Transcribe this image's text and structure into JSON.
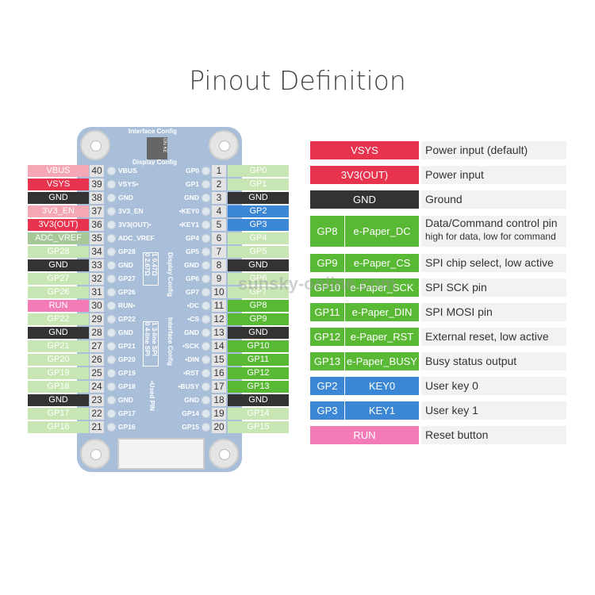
{
  "title": "Pinout Definition",
  "board": {
    "interface_config": "Interface Config",
    "display_config": "Display Config",
    "switch_text": "ON KE",
    "display_cfg_table": [
      [
        "1",
        "0.47Ω"
      ],
      [
        "0",
        "2.67Ω"
      ]
    ],
    "interface_cfg_table": [
      [
        "1",
        "3-line SPI"
      ],
      [
        "0",
        "4-line SPI"
      ]
    ],
    "used_pin": "•Used PIN",
    "board_color": "#a9bfd9"
  },
  "colors": {
    "pink_light": "#f4a7b5",
    "red": "#e8334f",
    "black": "#333333",
    "green_light": "#c8e6b3",
    "adc": "#a6c797",
    "blue": "#3b87d6",
    "green": "#5ab934",
    "run": "#f47cb6"
  },
  "left_pins": [
    {
      "num": "40",
      "label": "VBUS",
      "board": "VBUS",
      "c": "pink_light"
    },
    {
      "num": "39",
      "label": "VSYS",
      "board": "VSYS•",
      "c": "red"
    },
    {
      "num": "38",
      "label": "GND",
      "board": "GND",
      "c": "black"
    },
    {
      "num": "37",
      "label": "3V3_EN",
      "board": "3V3_EN",
      "c": "pink_light"
    },
    {
      "num": "36",
      "label": "3V3(OUT)",
      "board": "3V3(OUT)•",
      "c": "red"
    },
    {
      "num": "35",
      "label": "ADC_VREF",
      "board": "ADC_VREF",
      "c": "adc"
    },
    {
      "num": "34",
      "label": "GP28",
      "board": "GP28",
      "c": "green_light"
    },
    {
      "num": "33",
      "label": "GND",
      "board": "GND",
      "c": "black"
    },
    {
      "num": "32",
      "label": "GP27",
      "board": "GP27",
      "c": "green_light"
    },
    {
      "num": "31",
      "label": "GP26",
      "board": "GP26",
      "c": "green_light"
    },
    {
      "num": "30",
      "label": "RUN",
      "board": "RUN•",
      "c": "run"
    },
    {
      "num": "29",
      "label": "GP22",
      "board": "GP22",
      "c": "green_light"
    },
    {
      "num": "28",
      "label": "GND",
      "board": "GND",
      "c": "black"
    },
    {
      "num": "27",
      "label": "GP21",
      "board": "GP21",
      "c": "green_light"
    },
    {
      "num": "26",
      "label": "GP20",
      "board": "GP20",
      "c": "green_light"
    },
    {
      "num": "25",
      "label": "GP19",
      "board": "GP19",
      "c": "green_light"
    },
    {
      "num": "24",
      "label": "GP18",
      "board": "GP18",
      "c": "green_light"
    },
    {
      "num": "23",
      "label": "GND",
      "board": "GND",
      "c": "black"
    },
    {
      "num": "22",
      "label": "GP17",
      "board": "GP17",
      "c": "green_light"
    },
    {
      "num": "21",
      "label": "GP16",
      "board": "GP16",
      "c": "green_light"
    }
  ],
  "right_pins": [
    {
      "num": "1",
      "label": "GP0",
      "board": "GP0",
      "c": "green_light"
    },
    {
      "num": "2",
      "label": "GP1",
      "board": "GP1",
      "c": "green_light"
    },
    {
      "num": "3",
      "label": "GND",
      "board": "GND",
      "c": "black"
    },
    {
      "num": "4",
      "label": "GP2",
      "board": "•KEY0",
      "c": "blue"
    },
    {
      "num": "5",
      "label": "GP3",
      "board": "•KEY1",
      "c": "blue"
    },
    {
      "num": "6",
      "label": "GP4",
      "board": "GP4",
      "c": "green_light"
    },
    {
      "num": "7",
      "label": "GP5",
      "board": "GP5",
      "c": "green_light"
    },
    {
      "num": "8",
      "label": "GND",
      "board": "GND",
      "c": "black"
    },
    {
      "num": "9",
      "label": "GP6",
      "board": "GP6",
      "c": "green_light"
    },
    {
      "num": "10",
      "label": "GP7",
      "board": "GP7",
      "c": "green_light"
    },
    {
      "num": "11",
      "label": "GP8",
      "board": "•DC",
      "c": "green"
    },
    {
      "num": "12",
      "label": "GP9",
      "board": "•CS",
      "c": "green"
    },
    {
      "num": "13",
      "label": "GND",
      "board": "GND",
      "c": "black"
    },
    {
      "num": "14",
      "label": "GP10",
      "board": "•SCK",
      "c": "green"
    },
    {
      "num": "15",
      "label": "GP11",
      "board": "•DIN",
      "c": "green"
    },
    {
      "num": "16",
      "label": "GP12",
      "board": "•RST",
      "c": "green"
    },
    {
      "num": "17",
      "label": "GP13",
      "board": "•BUSY",
      "c": "green"
    },
    {
      "num": "18",
      "label": "GND",
      "board": "GND",
      "c": "black"
    },
    {
      "num": "19",
      "label": "GP14",
      "board": "GP14",
      "c": "green_light"
    },
    {
      "num": "20",
      "label": "GP15",
      "board": "GP15",
      "c": "green_light"
    }
  ],
  "legend": [
    {
      "pin": "VSYS",
      "desc": "Power input (default)",
      "c": "red"
    },
    {
      "pin": "3V3(OUT)",
      "desc": "Power input",
      "c": "red"
    },
    {
      "pin": "GND",
      "desc": "Ground",
      "c": "black"
    },
    {
      "pin": "GP8",
      "func": "e-Paper_DC",
      "desc": "Data/Command control pin",
      "desc2": "high for data, low for command",
      "c": "green"
    },
    {
      "pin": "GP9",
      "func": "e-Paper_CS",
      "desc": "SPI chip select, low active",
      "c": "green"
    },
    {
      "pin": "GP10",
      "func": "e-Paper_SCK",
      "desc": "SPI SCK pin",
      "c": "green"
    },
    {
      "pin": "GP11",
      "func": "e-Paper_DIN",
      "desc": "SPI MOSI pin",
      "c": "green"
    },
    {
      "pin": "GP12",
      "func": "e-Paper_RST",
      "desc": "External reset, low active",
      "c": "green"
    },
    {
      "pin": "GP13",
      "func": "e-Paper_BUSY",
      "desc": "Busy status output",
      "c": "green"
    },
    {
      "pin": "GP2",
      "func": "KEY0",
      "desc": "User key 0",
      "c": "blue"
    },
    {
      "pin": "GP3",
      "func": "KEY1",
      "desc": "User key 1",
      "c": "blue"
    },
    {
      "pin": "RUN",
      "desc": "Reset button",
      "c": "run"
    }
  ],
  "watermark": "sunsky-online.com"
}
